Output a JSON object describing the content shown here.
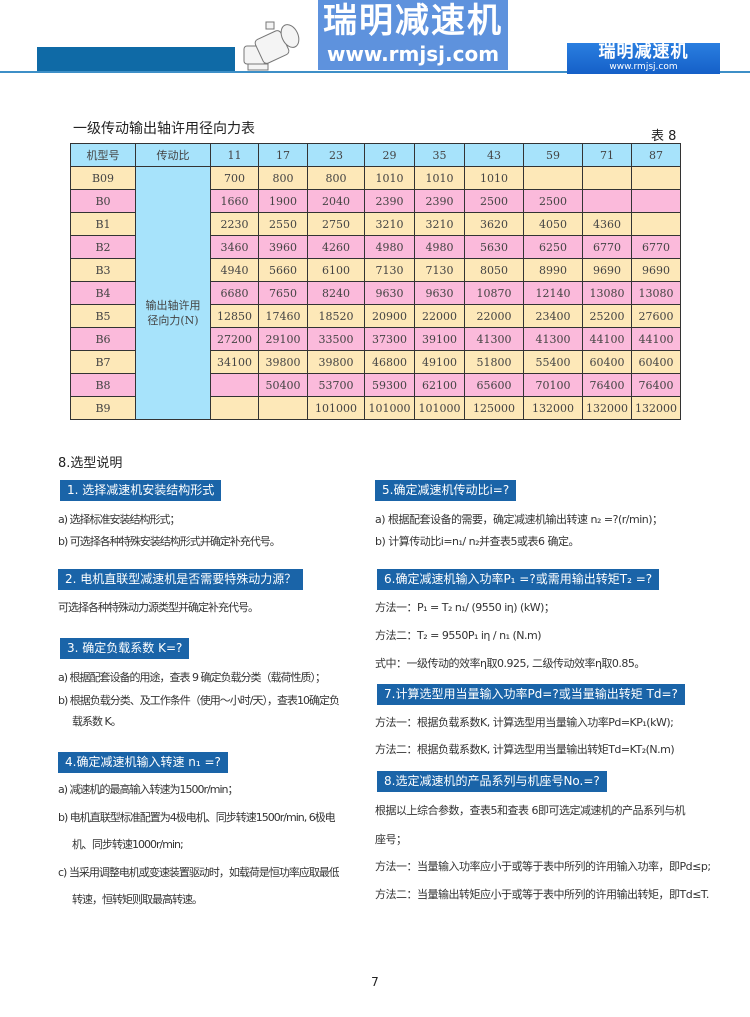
{
  "header": {
    "logo_title": "瑞明减速机",
    "logo_url": "www.rmjsj.com",
    "brand_color": "#0f6aa6"
  },
  "table": {
    "title": "一级传动输出轴许用径向力表",
    "label": "表 8",
    "headers": [
      "机型号",
      "传动比",
      "11",
      "17",
      "23",
      "29",
      "35",
      "43",
      "59",
      "71",
      "87"
    ],
    "desc": "输出轴许用径向力(N)",
    "rows": [
      {
        "model": "B09",
        "values": [
          "700",
          "800",
          "800",
          "1010",
          "1010",
          "1010",
          "",
          "",
          ""
        ]
      },
      {
        "model": "B0",
        "values": [
          "1660",
          "1900",
          "2040",
          "2390",
          "2390",
          "2500",
          "2500",
          "",
          ""
        ]
      },
      {
        "model": "B1",
        "values": [
          "2230",
          "2550",
          "2750",
          "3210",
          "3210",
          "3620",
          "4050",
          "4360",
          ""
        ]
      },
      {
        "model": "B2",
        "values": [
          "3460",
          "3960",
          "4260",
          "4980",
          "4980",
          "5630",
          "6250",
          "6770",
          "6770"
        ]
      },
      {
        "model": "B3",
        "values": [
          "4940",
          "5660",
          "6100",
          "7130",
          "7130",
          "8050",
          "8990",
          "9690",
          "9690"
        ]
      },
      {
        "model": "B4",
        "values": [
          "6680",
          "7650",
          "8240",
          "9630",
          "9630",
          "10870",
          "12140",
          "13080",
          "13080"
        ]
      },
      {
        "model": "B5",
        "values": [
          "12850",
          "17460",
          "18520",
          "20900",
          "22000",
          "22000",
          "23400",
          "25200",
          "27600"
        ]
      },
      {
        "model": "B6",
        "values": [
          "27200",
          "29100",
          "33500",
          "37300",
          "39100",
          "41300",
          "41300",
          "44100",
          "44100"
        ]
      },
      {
        "model": "B7",
        "values": [
          "34100",
          "39800",
          "39800",
          "46800",
          "49100",
          "51800",
          "55400",
          "60400",
          "60400"
        ]
      },
      {
        "model": "B8",
        "values": [
          "",
          "50400",
          "53700",
          "59300",
          "62100",
          "65600",
          "70100",
          "76400",
          "76400"
        ]
      },
      {
        "model": "B9",
        "values": [
          "",
          "",
          "101000",
          "101000",
          "101000",
          "125000",
          "132000",
          "132000",
          "132000"
        ]
      }
    ]
  },
  "section_title": "8.选型说明",
  "s1": {
    "h": "1. 选择减速机安装结构形式",
    "a": "a)  选择标准安装结构形式；",
    "b": "b)  可选择各种特殊安装结构形式并确定补充代号。"
  },
  "s2": {
    "h": "2. 电机直联型减速机是否需要特殊动力源？",
    "a": "可选择各种特殊动力源类型并确定补充代号。"
  },
  "s3": {
    "h": "3. 确定负载系数  K=?",
    "a": "a) 根据配套设备的用途，查表 9 确定负载分类（载荷性质）；",
    "b": "b) 根据负载分类、及工作条件（使用～小时/天），查表10确定负",
    "c": "载系数 K。"
  },
  "s4": {
    "h": "4.确定减速机输入转速 n₁ =?",
    "a": "a) 减速机的最高输入转速为1500r/min；",
    "b": "b) 电机直联型标准配置为4极电机、同步转速1500r/min, 6极电",
    "c": "机、同步转速1000r/min;",
    "d": "c) 当采用调整电机或变速装置驱动时，如载荷是恒功率应取最低",
    "e": "转速，恒转矩则取最高转速。"
  },
  "s5": {
    "h": "5.确定减速机传动比i=?",
    "a": "a) 根据配套设备的需要，确定减速机输出转速  n₂ =?(r/min)；",
    "b": "b) 计算传动比i=n₁/ n₂并查表5或表6 确定。"
  },
  "s6": {
    "h": "6.确定减速机输入功率P₁ =?或需用输出转矩T₂ =?",
    "a": "方法一：P₁ = T₂ n₁/ (9550 iη) (kW)；",
    "b": "方法二：T₂ = 9550P₁ iη / n₁ (N.m)",
    "c": "式中：一级传动的效率η取0.925, 二级传动效率η取0.85。"
  },
  "s7": {
    "h": "7.计算选型用当量输入功率Pd=?或当量输出转矩 Td=?",
    "a": "方法一：根据负载系数K, 计算选型用当量输入功率Pd=KP₁(kW);",
    "b": "方法二：根据负载系数K, 计算选型用当量输出转矩Td=KT₂(N.m)"
  },
  "s8": {
    "h": "8.选定减速机的产品系列与机座号No.=?",
    "a": "根据以上综合参数，查表5和查表 6即可选定减速机的产品系列与机",
    "b": "座号；",
    "c": "方法一：当量输入功率应小于或等于表中所列的许用输入功率，即Pd≤p;",
    "d": "方法二：当量输出转矩应小于或等于表中所列的许用输出转矩，即Td≤T."
  },
  "watermark": {
    "title": "瑞明减速机",
    "url": "www.rmjsj.com"
  },
  "page_number": "7"
}
